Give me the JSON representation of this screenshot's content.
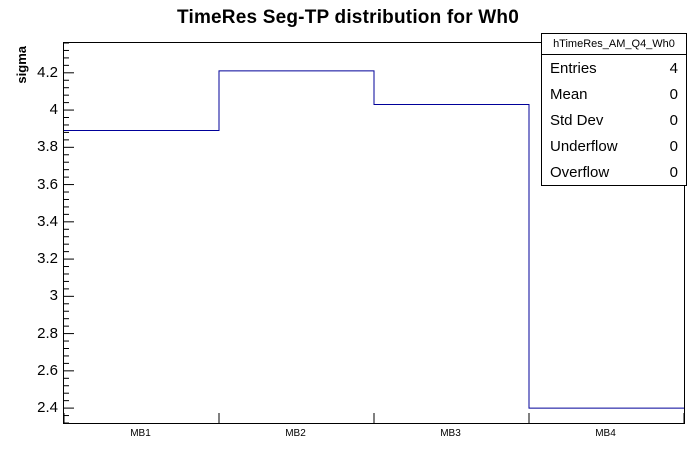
{
  "title": "TimeRes Seg-TP distribution for Wh0",
  "y_axis_label": "sigma",
  "stats": {
    "title": "hTimeRes_AM_Q4_Wh0",
    "rows": [
      {
        "label": "Entries",
        "value": "4"
      },
      {
        "label": "Mean",
        "value": "0"
      },
      {
        "label": "Std Dev",
        "value": "0"
      },
      {
        "label": "Underflow",
        "value": "0"
      },
      {
        "label": "Overflow",
        "value": "0"
      }
    ]
  },
  "chart_data": {
    "type": "bar",
    "subtype": "step-histogram",
    "title": "TimeRes Seg-TP distribution for Wh0",
    "categories": [
      "MB1",
      "MB2",
      "MB3",
      "MB4"
    ],
    "values": [
      3.89,
      4.21,
      4.03,
      2.4
    ],
    "xlabel": "",
    "ylabel": "sigma",
    "ylim": [
      2.32,
      4.36
    ],
    "yticks": [
      2.4,
      2.6,
      2.8,
      3.0,
      3.2,
      3.4,
      3.6,
      3.8,
      4.0,
      4.2
    ],
    "y_minor_step": 0.04,
    "grid": false,
    "legend_position": "none",
    "line_color": "#000099",
    "frame_color": "#000000",
    "background_color": "#ffffff"
  }
}
